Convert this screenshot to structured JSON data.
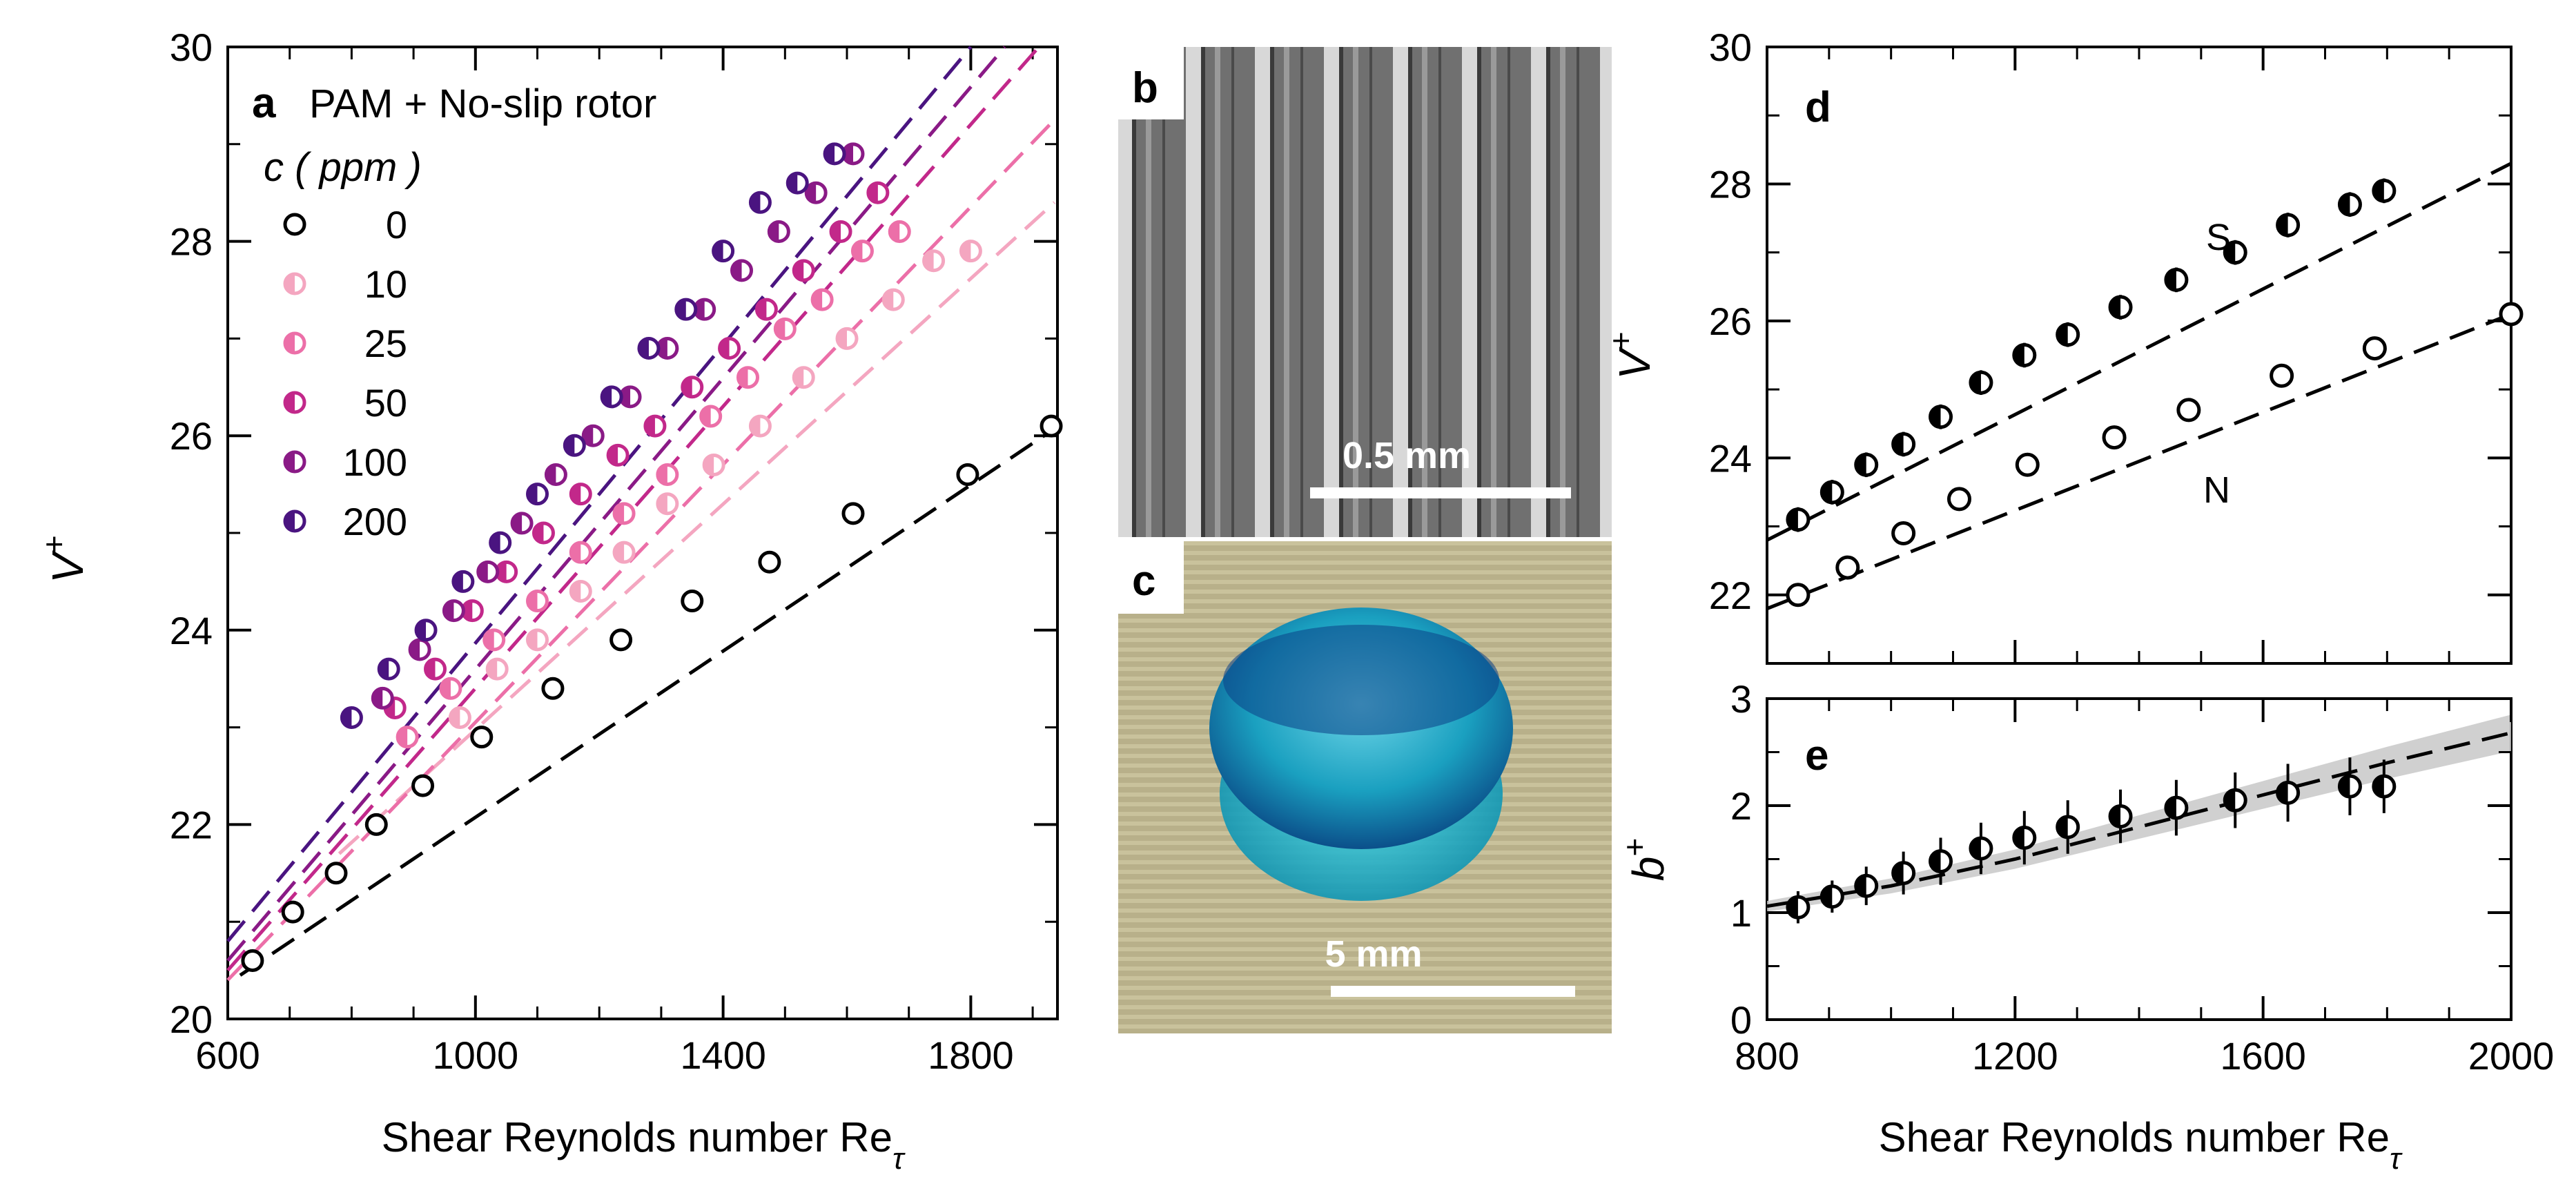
{
  "chart_data": [
    {
      "id": "a",
      "type": "scatter",
      "panel_label": "a",
      "title": "PAM + No-slip rotor",
      "legend_title": "c ( ppm )",
      "xlabel": "Shear Reynolds number Re",
      "xlabel_sub": "τ",
      "ylabel": "V",
      "ylabel_sup": "+",
      "xlim": [
        600,
        1940
      ],
      "ylim": [
        20,
        30
      ],
      "xticks": [
        600,
        1000,
        1400,
        1800
      ],
      "yticks": [
        20,
        22,
        24,
        26,
        28,
        30
      ],
      "series": [
        {
          "name": "0",
          "color": "#000000",
          "marker": "open",
          "x": [
            640,
            705,
            775,
            840,
            915,
            1010,
            1125,
            1235,
            1350,
            1475,
            1610,
            1795,
            1930
          ],
          "y": [
            20.6,
            21.1,
            21.5,
            22.0,
            22.4,
            22.9,
            23.4,
            23.9,
            24.3,
            24.7,
            25.2,
            25.6,
            26.1
          ],
          "fit": [
            [
              620,
              20.45
            ],
            [
              1930,
              26.05
            ]
          ]
        },
        {
          "name": "10",
          "color": "#f4a6c0",
          "marker": "half",
          "x": [
            975,
            1035,
            1100,
            1170,
            1240,
            1310,
            1385,
            1460,
            1530,
            1600,
            1675,
            1740,
            1800
          ],
          "y": [
            23.1,
            23.6,
            23.9,
            24.4,
            24.8,
            25.3,
            25.7,
            26.1,
            26.6,
            27.0,
            27.4,
            27.8,
            27.9
          ],
          "fit": [
            [
              780,
              21.7
            ],
            [
              1935,
              28.4
            ]
          ]
        },
        {
          "name": "25",
          "color": "#ec6fa8",
          "marker": "half",
          "x": [
            890,
            960,
            1030,
            1100,
            1170,
            1240,
            1310,
            1380,
            1440,
            1500,
            1560,
            1625,
            1685
          ],
          "y": [
            22.9,
            23.4,
            23.9,
            24.3,
            24.8,
            25.2,
            25.6,
            26.2,
            26.6,
            27.1,
            27.4,
            27.9,
            28.1
          ],
          "fit": [
            [
              600,
              20.4
            ],
            [
              1935,
              29.25
            ]
          ]
        },
        {
          "name": "50",
          "color": "#c2288a",
          "marker": "half",
          "x": [
            870,
            935,
            995,
            1050,
            1110,
            1170,
            1230,
            1290,
            1350,
            1410,
            1470,
            1530,
            1590,
            1650
          ],
          "y": [
            23.2,
            23.6,
            24.2,
            24.6,
            25.0,
            25.4,
            25.8,
            26.1,
            26.5,
            26.9,
            27.3,
            27.7,
            28.1,
            28.5
          ],
          "fit": [
            [
              600,
              20.5
            ],
            [
              1910,
              30.0
            ]
          ]
        },
        {
          "name": "100",
          "color": "#8a1a86",
          "marker": "half",
          "x": [
            850,
            910,
            965,
            1020,
            1075,
            1130,
            1190,
            1250,
            1310,
            1370,
            1430,
            1490,
            1550,
            1610
          ],
          "y": [
            23.3,
            23.8,
            24.2,
            24.6,
            25.1,
            25.6,
            26.0,
            26.4,
            26.9,
            27.3,
            27.7,
            28.1,
            28.5,
            28.9
          ],
          "fit": [
            [
              600,
              20.6
            ],
            [
              1855,
              30.0
            ]
          ]
        },
        {
          "name": "200",
          "color": "#4a1480",
          "marker": "half",
          "x": [
            800,
            860,
            920,
            980,
            1040,
            1100,
            1160,
            1220,
            1280,
            1340,
            1400,
            1460,
            1520,
            1580
          ],
          "y": [
            23.1,
            23.6,
            24.0,
            24.5,
            24.9,
            25.4,
            25.9,
            26.4,
            26.9,
            27.3,
            27.9,
            28.4,
            28.6,
            28.9
          ],
          "fit": [
            [
              600,
              20.8
            ],
            [
              1800,
              30.0
            ]
          ]
        }
      ]
    },
    {
      "id": "d",
      "type": "scatter",
      "panel_label": "d",
      "ylabel": "V",
      "ylabel_sup": "+",
      "xlim": [
        800,
        2000
      ],
      "ylim": [
        21,
        30
      ],
      "xticks": [
        800,
        1200,
        1600,
        2000
      ],
      "yticks": [
        22,
        24,
        26,
        28,
        30
      ],
      "annotations": [
        "S",
        "N"
      ],
      "series": [
        {
          "name": "S",
          "marker": "half-black",
          "x": [
            850,
            905,
            960,
            1020,
            1080,
            1145,
            1215,
            1285,
            1370,
            1460,
            1555,
            1640,
            1740,
            1795
          ],
          "y": [
            23.1,
            23.5,
            23.9,
            24.2,
            24.6,
            25.1,
            25.5,
            25.8,
            26.2,
            26.6,
            27.0,
            27.4,
            27.7,
            27.9
          ],
          "fit": [
            [
              800,
              22.8
            ],
            [
              2000,
              28.3
            ]
          ]
        },
        {
          "name": "N",
          "marker": "open",
          "x": [
            850,
            930,
            1020,
            1110,
            1220,
            1360,
            1480,
            1630,
            1780,
            2000
          ],
          "y": [
            22.0,
            22.4,
            22.9,
            23.4,
            23.9,
            24.3,
            24.7,
            25.2,
            25.6,
            26.1
          ],
          "fit": [
            [
              800,
              21.8
            ],
            [
              2000,
              26.1
            ]
          ]
        }
      ]
    },
    {
      "id": "e",
      "type": "scatter",
      "panel_label": "e",
      "xlabel": "Shear Reynolds number Re",
      "xlabel_sub": "τ",
      "ylabel": "b",
      "ylabel_sup": "+",
      "xlim": [
        800,
        2000
      ],
      "ylim": [
        0,
        3
      ],
      "xticks": [
        800,
        1200,
        1600,
        2000
      ],
      "yticks": [
        0,
        1,
        2,
        3
      ],
      "series": [
        {
          "name": "b+",
          "marker": "half-black",
          "x": [
            850,
            905,
            960,
            1020,
            1080,
            1145,
            1215,
            1285,
            1370,
            1460,
            1555,
            1640,
            1740,
            1795
          ],
          "y": [
            1.05,
            1.15,
            1.25,
            1.37,
            1.48,
            1.6,
            1.7,
            1.8,
            1.9,
            1.98,
            2.05,
            2.12,
            2.18,
            2.18
          ],
          "err": [
            0.15,
            0.15,
            0.18,
            0.2,
            0.22,
            0.24,
            0.25,
            0.25,
            0.25,
            0.26,
            0.26,
            0.27,
            0.27,
            0.25
          ],
          "fit": [
            [
              800,
              1.06
            ],
            [
              1000,
              1.25
            ],
            [
              1200,
              1.5
            ],
            [
              1400,
              1.8
            ],
            [
              1600,
              2.1
            ],
            [
              1800,
              2.4
            ],
            [
              2000,
              2.68
            ]
          ]
        }
      ]
    }
  ],
  "images": {
    "b": {
      "panel_label": "b",
      "scale_label": "0.5 mm"
    },
    "c": {
      "panel_label": "c",
      "scale_label": "5 mm"
    }
  }
}
